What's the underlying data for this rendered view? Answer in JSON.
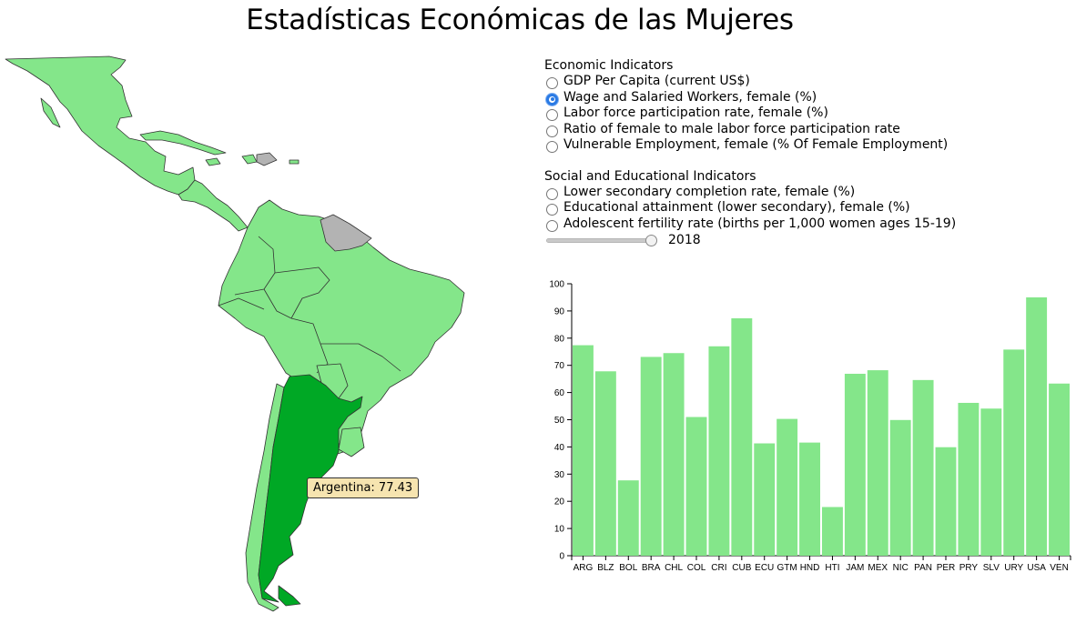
{
  "title": "Estadísticas Económicas de las Mujeres",
  "economic": {
    "title": "Economic Indicators",
    "options": [
      {
        "label": "GDP Per Capita (current US$)",
        "checked": false
      },
      {
        "label": "Wage and Salaried Workers, female (%)",
        "checked": true
      },
      {
        "label": "Labor force participation rate, female (%)",
        "checked": false
      },
      {
        "label": "Ratio of female to male labor force participation rate",
        "checked": false
      },
      {
        "label": "Vulnerable Employment, female (% Of Female Employment)",
        "checked": false
      }
    ]
  },
  "social": {
    "title": "Social and Educational Indicators",
    "options": [
      {
        "label": "Lower secondary completion rate, female (%)",
        "checked": false
      },
      {
        "label": "Educational attainment (lower secondary), female (%)",
        "checked": false
      },
      {
        "label": "Adolescent fertility rate (births per 1,000 women ages 15-19)",
        "checked": false
      }
    ]
  },
  "slider": {
    "value": "2018",
    "fraction": 1.0
  },
  "tooltip": {
    "text": "Argentina: 77.43"
  },
  "colors": {
    "bar": "#84e68a",
    "map_land": "#84e68a",
    "map_selected": "#00a825",
    "map_nodata": "#b3b3b3"
  },
  "chart_data": {
    "type": "bar",
    "categories": [
      "ARG",
      "BLZ",
      "BOL",
      "BRA",
      "CHL",
      "COL",
      "CRI",
      "CUB",
      "ECU",
      "GTM",
      "HND",
      "HTI",
      "JAM",
      "MEX",
      "NIC",
      "PAN",
      "PER",
      "PRY",
      "SLV",
      "URY",
      "USA",
      "VEN"
    ],
    "values": [
      77.4,
      67.8,
      27.7,
      73.1,
      74.5,
      51.0,
      77.0,
      87.3,
      41.3,
      50.3,
      41.6,
      17.9,
      66.9,
      68.2,
      49.9,
      64.6,
      39.9,
      56.2,
      54.1,
      75.8,
      95.0,
      63.3
    ],
    "ylim": [
      0,
      100
    ],
    "yticks": [
      0,
      10,
      20,
      30,
      40,
      50,
      60,
      70,
      80,
      90,
      100
    ],
    "grid": false
  }
}
